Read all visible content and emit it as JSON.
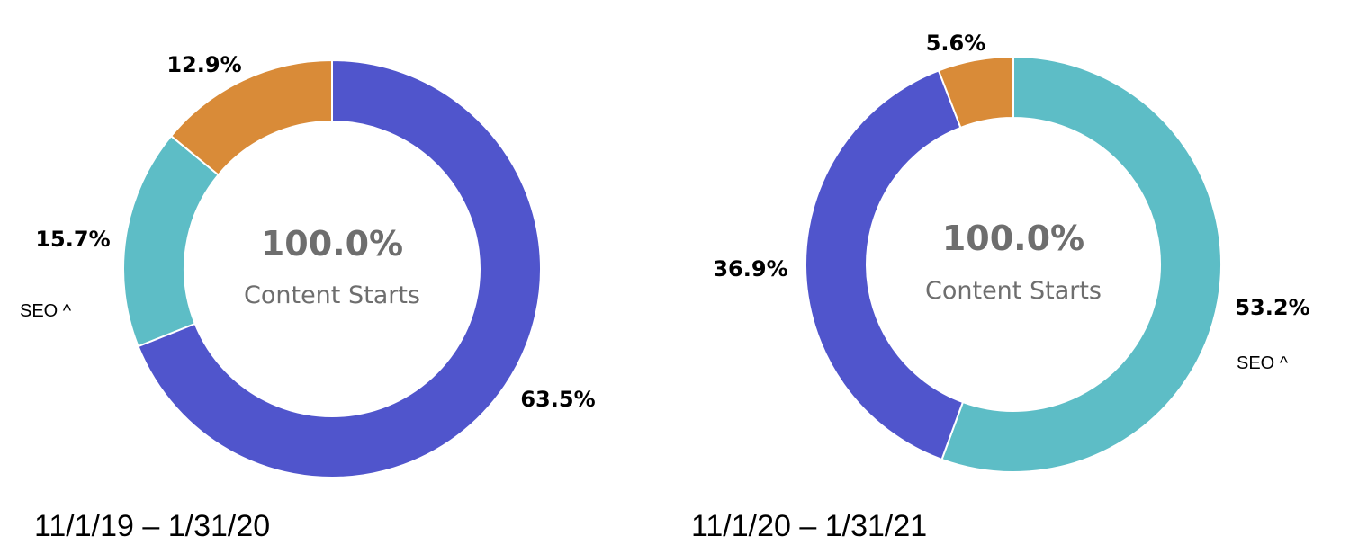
{
  "chart_data": [
    {
      "type": "pie",
      "center_value": "100.0%",
      "center_label": "Content Starts",
      "date_range": "11/1/19 – 1/31/20",
      "annotation": "SEO ^",
      "slices": [
        {
          "value": 63.5,
          "label": "63.5%",
          "color": "#5055cc"
        },
        {
          "value": 15.7,
          "label": "15.7%",
          "color": "#5dbdc6"
        },
        {
          "value": 12.9,
          "label": "12.9%",
          "color": "#d98b38"
        }
      ]
    },
    {
      "type": "pie",
      "center_value": "100.0%",
      "center_label": "Content Starts",
      "date_range": "11/1/20 – 1/31/21",
      "annotation": "SEO ^",
      "slices": [
        {
          "value": 53.2,
          "label": "53.2%",
          "color": "#5dbdc6"
        },
        {
          "value": 36.9,
          "label": "36.9%",
          "color": "#5055cc"
        },
        {
          "value": 5.6,
          "label": "5.6%",
          "color": "#d98b38"
        }
      ]
    }
  ]
}
